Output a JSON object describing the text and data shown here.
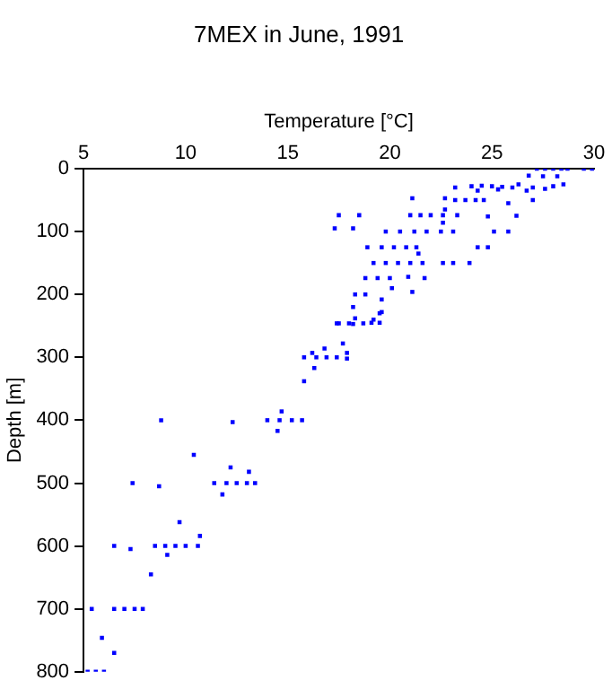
{
  "chart_data": {
    "type": "scatter",
    "title": "7MEX in June, 1991",
    "xlabel": "Temperature [°C]",
    "ylabel": "Depth [m]",
    "xlim": [
      5,
      30
    ],
    "xticks": [
      5,
      10,
      15,
      20,
      25,
      30
    ],
    "ylim": [
      800,
      0
    ],
    "yticks": [
      0,
      100,
      200,
      300,
      400,
      500,
      600,
      700,
      800
    ],
    "marker": "square",
    "color": "#0000ff",
    "x": [
      27.2,
      27.6,
      28.0,
      28.4,
      28.7,
      29.5,
      29.9,
      26.8,
      27.5,
      28.2,
      23.2,
      24.0,
      24.5,
      25.0,
      25.5,
      26.0,
      24.3,
      25.3,
      26.3,
      27.0,
      28.0,
      28.5,
      27.6,
      26.7,
      22.7,
      23.2,
      23.7,
      24.2,
      24.6,
      27.0,
      25.8,
      21.1,
      22.7,
      17.5,
      18.5,
      21.0,
      21.5,
      22.0,
      22.6,
      23.3,
      24.8,
      26.2,
      17.3,
      18.2,
      19.8,
      20.5,
      21.2,
      21.8,
      22.5,
      23.1,
      25.1,
      25.8,
      22.6,
      18.9,
      19.6,
      20.2,
      20.8,
      21.3,
      24.3,
      24.8,
      21.4,
      19.2,
      19.8,
      20.4,
      21.0,
      21.6,
      22.6,
      23.1,
      23.9,
      18.8,
      19.4,
      20.0,
      20.9,
      21.7,
      20.1,
      21.1,
      18.3,
      18.8,
      19.6,
      18.2,
      19.5,
      19.2,
      17.5,
      18.2,
      17.4,
      18.0,
      18.7,
      19.1,
      19.5,
      18.3,
      19.6,
      17.7,
      16.2,
      17.9,
      16.8,
      15.8,
      16.4,
      16.9,
      17.4,
      17.9,
      16.3,
      15.8,
      14.7,
      14.0,
      14.6,
      15.2,
      15.7,
      14.5,
      8.8,
      12.3,
      10.4,
      12.2,
      13.1,
      7.4,
      8.7,
      11.4,
      12.0,
      12.5,
      13.0,
      13.4,
      11.8,
      9.7,
      10.7,
      6.5,
      8.5,
      9.0,
      9.5,
      10.0,
      10.6,
      7.3,
      9.1,
      8.3,
      5.4,
      6.5,
      7.0,
      7.5,
      7.9,
      5.9,
      6.5,
      5.2,
      5.6,
      6.0
    ],
    "values": [
      0,
      0,
      0,
      0,
      0,
      0,
      0,
      11,
      12,
      12,
      30,
      28,
      27,
      28,
      29,
      30,
      35,
      33,
      25,
      30,
      28,
      25,
      32,
      35,
      47,
      50,
      50,
      50,
      50,
      50,
      55,
      47,
      65,
      74,
      74,
      74,
      74,
      74,
      74,
      74,
      76,
      75,
      95,
      95,
      100,
      100,
      100,
      100,
      100,
      100,
      100,
      100,
      86,
      125,
      125,
      125,
      125,
      125,
      125,
      125,
      135,
      150,
      150,
      150,
      150,
      150,
      150,
      150,
      150,
      174,
      174,
      174,
      172,
      174,
      190,
      196,
      200,
      200,
      208,
      220,
      230,
      240,
      246,
      247,
      246,
      246,
      246,
      245,
      245,
      238,
      228,
      278,
      293,
      293,
      286,
      300,
      300,
      300,
      300,
      302,
      317,
      338,
      386,
      400,
      400,
      400,
      400,
      417,
      400,
      403,
      455,
      475,
      482,
      500,
      505,
      500,
      500,
      500,
      500,
      500,
      518,
      562,
      584,
      600,
      600,
      600,
      600,
      600,
      600,
      605,
      614,
      645,
      700,
      700,
      700,
      700,
      700,
      746,
      770,
      800,
      800,
      800
    ]
  }
}
